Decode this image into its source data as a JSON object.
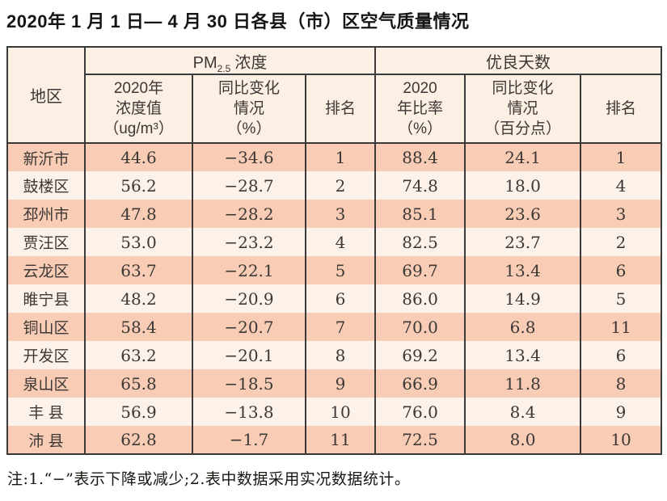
{
  "title": "2020年 1 月 1 日— 4 月 30 日各县（市）区空气质量情况",
  "table": {
    "corner_header": "地区",
    "group_pm": {
      "prefix": "PM",
      "sub": "2.5",
      "suffix": "浓度"
    },
    "group_good": "优良天数",
    "sub_headers": [
      "2020年\n浓度值\n（ug/m³）",
      "同比变化\n情况\n（%）",
      "排名",
      "2020\n年比率\n（%）",
      "同比变化\n情况\n（百分点）",
      "排名"
    ],
    "rows": [
      {
        "region": "新沂市",
        "pm_value": "44.6",
        "pm_change": "−34.6",
        "pm_rank": "1",
        "good_rate": "88.4",
        "good_change": "24.1",
        "good_rank": "1"
      },
      {
        "region": "鼓楼区",
        "pm_value": "56.2",
        "pm_change": "−28.7",
        "pm_rank": "2",
        "good_rate": "74.8",
        "good_change": "18.0",
        "good_rank": "4"
      },
      {
        "region": "邳州市",
        "pm_value": "47.8",
        "pm_change": "−28.2",
        "pm_rank": "3",
        "good_rate": "85.1",
        "good_change": "23.6",
        "good_rank": "3"
      },
      {
        "region": "贾汪区",
        "pm_value": "53.0",
        "pm_change": "−23.2",
        "pm_rank": "4",
        "good_rate": "82.5",
        "good_change": "23.7",
        "good_rank": "2"
      },
      {
        "region": "云龙区",
        "pm_value": "63.7",
        "pm_change": "−22.1",
        "pm_rank": "5",
        "good_rate": "69.7",
        "good_change": "13.4",
        "good_rank": "6"
      },
      {
        "region": "睢宁县",
        "pm_value": "48.2",
        "pm_change": "−20.9",
        "pm_rank": "6",
        "good_rate": "86.0",
        "good_change": "14.9",
        "good_rank": "5"
      },
      {
        "region": "铜山区",
        "pm_value": "58.4",
        "pm_change": "−20.7",
        "pm_rank": "7",
        "good_rate": "70.0",
        "good_change": "6.8",
        "good_rank": "11"
      },
      {
        "region": "开发区",
        "pm_value": "63.2",
        "pm_change": "−20.1",
        "pm_rank": "8",
        "good_rate": "69.2",
        "good_change": "13.4",
        "good_rank": "6"
      },
      {
        "region": "泉山区",
        "pm_value": "65.8",
        "pm_change": "−18.5",
        "pm_rank": "9",
        "good_rate": "66.9",
        "good_change": "11.8",
        "good_rank": "8"
      },
      {
        "region": "丰 县",
        "pm_value": "56.9",
        "pm_change": "−13.8",
        "pm_rank": "10",
        "good_rate": "76.0",
        "good_change": "8.4",
        "good_rank": "9"
      },
      {
        "region": "沛 县",
        "pm_value": "62.8",
        "pm_change": "−1.7",
        "pm_rank": "11",
        "good_rate": "72.5",
        "good_change": "8.0",
        "good_rank": "10"
      }
    ]
  },
  "note": "注:1.“−”表示下降或减少;2.表中数据采用实况数据统计。",
  "colors": {
    "border": "#3a3a3a",
    "header-bg": "#fcefe3",
    "row-odd": "#f8ccb5",
    "row-even": "#fdf2ea",
    "text": "#3c3835",
    "title-text": "#171513"
  }
}
